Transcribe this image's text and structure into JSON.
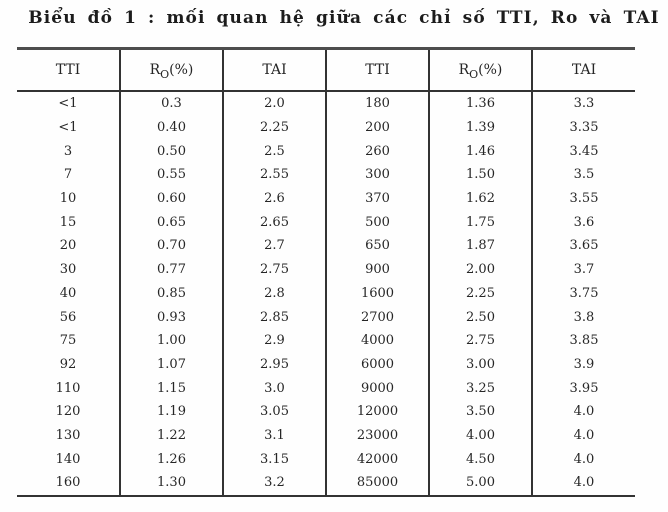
{
  "title": "Biểu đồ 1 : mối quan hệ giữa các chỉ số TTI, Ro và TAI",
  "colors": {
    "page_background": "#fefefe",
    "border_top": "#4d4d4d",
    "border_lines": "#333333",
    "text": "#262626"
  },
  "table": {
    "headers": [
      {
        "pre": "TTI",
        "sub": "",
        "post": ""
      },
      {
        "pre": "R",
        "sub": "O",
        "post": "(%)"
      },
      {
        "pre": "TAI",
        "sub": "",
        "post": ""
      },
      {
        "pre": "TTI",
        "sub": "",
        "post": ""
      },
      {
        "pre": "R",
        "sub": "O",
        "post": "(%)"
      },
      {
        "pre": "TAI",
        "sub": "",
        "post": ""
      }
    ],
    "rows": [
      [
        "<1",
        "0.3",
        "2.0",
        "180",
        "1.36",
        "3.3"
      ],
      [
        "<1",
        "0.40",
        "2.25",
        "200",
        "1.39",
        "3.35"
      ],
      [
        "3",
        "0.50",
        "2.5",
        "260",
        "1.46",
        "3.45"
      ],
      [
        "7",
        "0.55",
        "2.55",
        "300",
        "1.50",
        "3.5"
      ],
      [
        "10",
        "0.60",
        "2.6",
        "370",
        "1.62",
        "3.55"
      ],
      [
        "15",
        "0.65",
        "2.65",
        "500",
        "1.75",
        "3.6"
      ],
      [
        "20",
        "0.70",
        "2.7",
        "650",
        "1.87",
        "3.65"
      ],
      [
        "30",
        "0.77",
        "2.75",
        "900",
        "2.00",
        "3.7"
      ],
      [
        "40",
        "0.85",
        "2.8",
        "1600",
        "2.25",
        "3.75"
      ],
      [
        "56",
        "0.93",
        "2.85",
        "2700",
        "2.50",
        "3.8"
      ],
      [
        "75",
        "1.00",
        "2.9",
        "4000",
        "2.75",
        "3.85"
      ],
      [
        "92",
        "1.07",
        "2.95",
        "6000",
        "3.00",
        "3.9"
      ],
      [
        "110",
        "1.15",
        "3.0",
        "9000",
        "3.25",
        "3.95"
      ],
      [
        "120",
        "1.19",
        "3.05",
        "12000",
        "3.50",
        "4.0"
      ],
      [
        "130",
        "1.22",
        "3.1",
        "23000",
        "4.00",
        "4.0"
      ],
      [
        "140",
        "1.26",
        "3.15",
        "42000",
        "4.50",
        "4.0"
      ],
      [
        "160",
        "1.30",
        "3.2",
        "85000",
        "5.00",
        "4.0"
      ]
    ]
  },
  "chart_data": {
    "type": "table",
    "title": "Biểu đồ 1 : mối quan hệ giữa các chỉ số TTI, Ro và TAI",
    "columns": [
      "TTI",
      "Ro(%)",
      "TAI",
      "TTI",
      "Ro(%)",
      "TAI"
    ],
    "note": "values in table.rows"
  }
}
